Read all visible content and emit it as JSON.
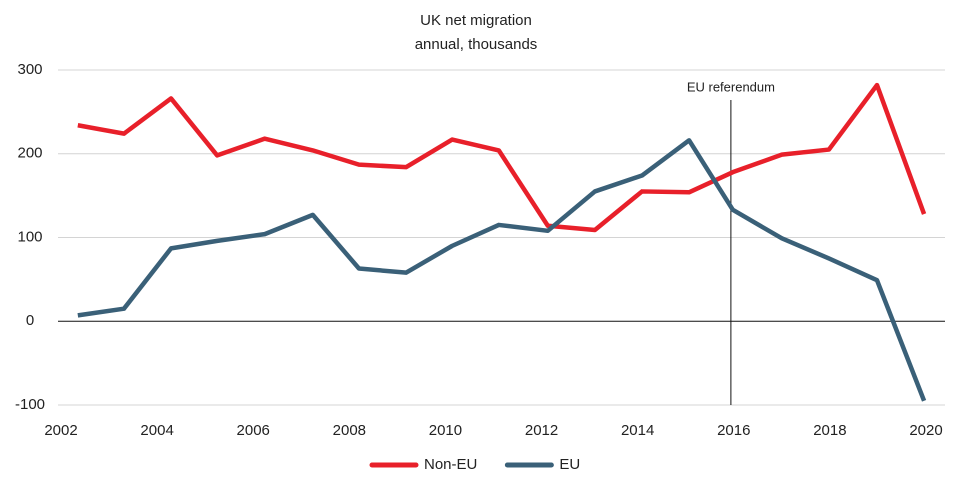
{
  "chart_data": {
    "type": "line",
    "title": "UK net migration",
    "subtitle": "annual, thousands",
    "x": [
      2002.35,
      2003.31,
      2004.29,
      2005.25,
      2006.24,
      2007.24,
      2008.2,
      2009.18,
      2010.14,
      2011.11,
      2012.13,
      2013.11,
      2014.09,
      2015.07,
      2015.98,
      2017.0,
      2017.98,
      2018.98,
      2019.96
    ],
    "series": [
      {
        "name": "Non-EU",
        "color": "#e8202a",
        "values": [
          234,
          224,
          266,
          198,
          218,
          204,
          187,
          184,
          217,
          204,
          114,
          109,
          155,
          154,
          178,
          199,
          205,
          282,
          128
        ]
      },
      {
        "name": "EU",
        "color": "#3a6078",
        "values": [
          7,
          15,
          87,
          96,
          104,
          127,
          63,
          58,
          90,
          115,
          108,
          155,
          174,
          216,
          133,
          99,
          75,
          49,
          -95
        ]
      }
    ],
    "xlim": [
      2002,
      2020
    ],
    "xticks": [
      2002,
      2004,
      2006,
      2008,
      2010,
      2012,
      2014,
      2016,
      2018,
      2020
    ],
    "ylim": [
      -100,
      300
    ],
    "yticks": [
      300,
      200,
      100,
      0,
      -100
    ],
    "grid": true,
    "annotations": [
      {
        "text": "EU referendum",
        "x": 2015.94
      }
    ],
    "legend": "bottom"
  }
}
